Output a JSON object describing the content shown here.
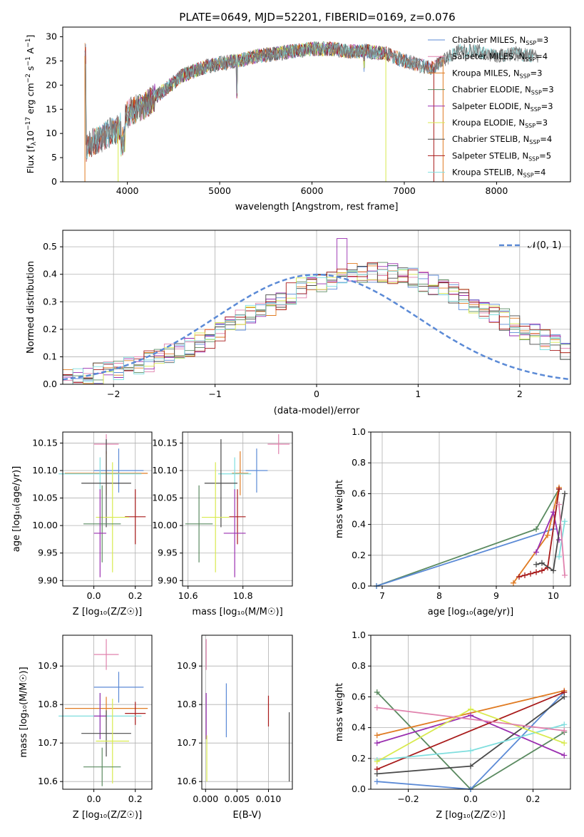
{
  "figure": {
    "title": "PLATE=0649, MJD=52201, FIBERID=0169, z=0.076"
  },
  "colors": {
    "chabrier_miles": "#5b8ad6",
    "salpeter_miles": "#e081ad",
    "kroupa_miles": "#e07b22",
    "chabrier_elodie": "#5a8a60",
    "salpeter_elodie": "#9a2fb0",
    "kroupa_elodie": "#d8ea4e",
    "chabrier_stelib": "#4a4a4a",
    "salpeter_stelib": "#a81a1a",
    "kroupa_stelib": "#7fdede",
    "data": "#808080",
    "normal": "#5b8ad6"
  },
  "spectrum": {
    "xlabel": "wavelength [Angstrom, rest frame]",
    "ylabel_main": "Flux [f",
    "ylabel_sub1": "λ",
    "ylabel_mid": "10",
    "ylabel_sup1": "−17",
    "ylabel_rest": " erg cm",
    "ylabel_sup2": "−2",
    "ylabel_s": " s",
    "ylabel_sup3": "−1",
    "ylabel_A": " A",
    "ylabel_sup4": "−1",
    "ylabel_end": "]",
    "xticks": [
      "4000",
      "5000",
      "6000",
      "7000",
      "8000"
    ],
    "yticks": [
      "0",
      "5",
      "10",
      "15",
      "20",
      "25",
      "30"
    ],
    "legend": [
      {
        "name": "Chabrier MILES",
        "n": "3",
        "key": "chabrier_miles"
      },
      {
        "name": "Salpeter MILES",
        "n": "4",
        "key": "salpeter_miles"
      },
      {
        "name": "Kroupa MILES",
        "n": "3",
        "key": "kroupa_miles"
      },
      {
        "name": "Chabrier ELODIE",
        "n": "3",
        "key": "chabrier_elodie"
      },
      {
        "name": "Salpeter ELODIE",
        "n": "3",
        "key": "salpeter_elodie"
      },
      {
        "name": "Kroupa ELODIE",
        "n": "3",
        "key": "kroupa_elodie"
      },
      {
        "name": "Chabrier STELIB",
        "n": "4",
        "key": "chabrier_stelib"
      },
      {
        "name": "Salpeter STELIB",
        "n": "5",
        "key": "salpeter_stelib"
      },
      {
        "name": "Kroupa STELIB",
        "n": "4",
        "key": "kroupa_stelib"
      }
    ],
    "legend_n_prefix": ", N",
    "legend_n_sub": "SSP",
    "legend_n_eq": "="
  },
  "residuals": {
    "xlabel": "(data-model)/error",
    "ylabel": "Normed distribution",
    "xticks": [
      "−2",
      "−1",
      "0",
      "1",
      "2"
    ],
    "yticks": [
      "0.0",
      "0.1",
      "0.2",
      "0.3",
      "0.4",
      "0.5"
    ],
    "legend_label": "𝒩(0, 1)"
  },
  "panels": {
    "age_z": {
      "xlabel": "Z [log₁₀(Z/Z☉)]",
      "ylabel": "age  [log₁₀(age/yr)]",
      "xticks": [
        "0.0",
        "0.2"
      ],
      "yticks": [
        "9.90",
        "9.95",
        "10.00",
        "10.05",
        "10.10",
        "10.15"
      ]
    },
    "age_mass": {
      "xlabel": "mass [log₁₀(M/M☉)]",
      "xticks": [
        "10.6",
        "10.8"
      ],
      "yticks": [
        "9.90",
        "9.95",
        "10.00",
        "10.05",
        "10.10",
        "10.15"
      ]
    },
    "mw_age": {
      "xlabel": "age  [log₁₀(age/yr)]",
      "ylabel": "mass weight",
      "xticks": [
        "7",
        "8",
        "9",
        "10"
      ],
      "yticks": [
        "0.0",
        "0.2",
        "0.4",
        "0.6",
        "0.8",
        "1.0"
      ]
    },
    "mass_z": {
      "xlabel": "Z [log₁₀(Z/Z☉)]",
      "ylabel": "mass [log₁₀(M/M☉)]",
      "xticks": [
        "0.0",
        "0.2"
      ],
      "yticks": [
        "10.6",
        "10.7",
        "10.8",
        "10.9"
      ]
    },
    "mass_ebv": {
      "xlabel": "E(B-V)",
      "xticks": [
        "0.000",
        "0.005",
        "0.010"
      ],
      "yticks": [
        "10.6",
        "10.7",
        "10.8",
        "10.9"
      ]
    },
    "mw_z": {
      "xlabel": "Z [log₁₀(Z/Z☉)]",
      "ylabel": "mass weight",
      "xticks": [
        "−0.2",
        "0.0",
        "0.2"
      ],
      "yticks": [
        "0.0",
        "0.2",
        "0.4",
        "0.6",
        "0.8",
        "1.0"
      ]
    }
  },
  "chart_data": [
    {
      "type": "line",
      "title": "PLATE=0649, MJD=52201, FIBERID=0169, z=0.076",
      "xlabel": "wavelength [Angstrom, rest frame]",
      "ylabel": "Flux [f_λ 10^-17 erg cm^-2 s^-1 A^-1]",
      "xlim": [
        3300,
        8800
      ],
      "ylim": [
        0,
        32
      ],
      "series_names": [
        "Chabrier MILES, N_SSP=3",
        "Salpeter MILES, N_SSP=4",
        "Kroupa MILES, N_SSP=3",
        "Chabrier ELODIE, N_SSP=3",
        "Salpeter ELODIE, N_SSP=3",
        "Kroupa ELODIE, N_SSP=3",
        "Chabrier STELIB, N_SSP=4",
        "Salpeter STELIB, N_SSP=5",
        "Kroupa STELIB, N_SSP=4"
      ],
      "continuum": {
        "x": [
          3550,
          3700,
          3900,
          4000,
          4200,
          4400,
          4600,
          4800,
          5000,
          5200,
          5400,
          5600,
          5800,
          6000,
          6200,
          6400,
          6600,
          6800,
          7000,
          7200,
          7300,
          7400,
          7600,
          7800,
          8000,
          8200,
          8400
        ],
        "y": [
          7,
          9,
          11,
          14,
          16,
          19,
          22,
          23.5,
          24.5,
          25,
          26,
          26.5,
          27,
          27.5,
          27.5,
          27,
          27,
          26.5,
          25,
          24,
          23.5,
          25,
          27,
          27,
          26,
          26.5,
          26
        ]
      }
    },
    {
      "type": "histogram",
      "xlabel": "(data-model)/error",
      "ylabel": "Normed distribution",
      "xlim": [
        -2.5,
        2.5
      ],
      "ylim": [
        0,
        0.56
      ],
      "bin_width": 0.1,
      "bins_left": -2.5,
      "density": [
        0.02,
        0.025,
        0.03,
        0.04,
        0.045,
        0.05,
        0.06,
        0.07,
        0.085,
        0.1,
        0.11,
        0.125,
        0.14,
        0.155,
        0.17,
        0.19,
        0.21,
        0.23,
        0.25,
        0.27,
        0.29,
        0.31,
        0.33,
        0.35,
        0.36,
        0.375,
        0.385,
        0.395,
        0.4,
        0.41,
        0.41,
        0.405,
        0.4,
        0.39,
        0.385,
        0.375,
        0.36,
        0.34,
        0.33,
        0.31,
        0.29,
        0.27,
        0.255,
        0.235,
        0.215,
        0.195,
        0.18,
        0.16,
        0.14,
        0.125
      ],
      "reference": "N(0,1)"
    },
    {
      "type": "scatter",
      "xlabel": "Z",
      "ylabel": "age",
      "points": [
        {
          "key": "salpeter_miles",
          "x": 0.06,
          "y": 10.148,
          "xerr": 0.06,
          "yerr": 0.018
        },
        {
          "key": "chabrier_miles",
          "x": 0.12,
          "y": 10.1,
          "xerr": 0.12,
          "yerr": 0.04
        },
        {
          "key": "kroupa_miles",
          "x": 0.06,
          "y": 10.095,
          "xerr": 0.2,
          "yerr": 0.04
        },
        {
          "key": "kroupa_stelib",
          "x": 0.03,
          "y": 10.094,
          "xerr": 0.2,
          "yerr": 0.03
        },
        {
          "key": "chabrier_stelib",
          "x": 0.06,
          "y": 10.077,
          "xerr": 0.12,
          "yerr": 0.08
        },
        {
          "key": "salpeter_stelib",
          "x": 0.2,
          "y": 10.016,
          "xerr": 0.05,
          "yerr": 0.05
        },
        {
          "key": "kroupa_elodie",
          "x": 0.09,
          "y": 10.015,
          "xerr": 0.08,
          "yerr": 0.1
        },
        {
          "key": "chabrier_elodie",
          "x": 0.04,
          "y": 10.003,
          "xerr": 0.09,
          "yerr": 0.07
        },
        {
          "key": "salpeter_elodie",
          "x": 0.03,
          "y": 9.986,
          "xerr": 0.03,
          "yerr": 0.08
        }
      ]
    },
    {
      "type": "scatter",
      "xlabel": "mass",
      "ylabel": "age",
      "points": [
        {
          "key": "salpeter_miles",
          "x": 10.93,
          "y": 10.148,
          "xerr": 0.04,
          "yerr": 0.018
        },
        {
          "key": "chabrier_miles",
          "x": 10.85,
          "y": 10.1,
          "xerr": 0.04,
          "yerr": 0.04
        },
        {
          "key": "kroupa_miles",
          "x": 10.79,
          "y": 10.095,
          "xerr": 0.03,
          "yerr": 0.04
        },
        {
          "key": "kroupa_stelib",
          "x": 10.77,
          "y": 10.094,
          "xerr": 0.06,
          "yerr": 0.03
        },
        {
          "key": "chabrier_stelib",
          "x": 10.72,
          "y": 10.077,
          "xerr": 0.06,
          "yerr": 0.08
        },
        {
          "key": "salpeter_stelib",
          "x": 10.78,
          "y": 10.016,
          "xerr": 0.03,
          "yerr": 0.05
        },
        {
          "key": "kroupa_elodie",
          "x": 10.7,
          "y": 10.015,
          "xerr": 0.05,
          "yerr": 0.1
        },
        {
          "key": "chabrier_elodie",
          "x": 10.64,
          "y": 10.003,
          "xerr": 0.05,
          "yerr": 0.07
        },
        {
          "key": "salpeter_elodie",
          "x": 10.77,
          "y": 9.986,
          "xerr": 0.04,
          "yerr": 0.08
        }
      ]
    },
    {
      "type": "line",
      "xlabel": "age",
      "ylabel": "mass weight",
      "xlim": [
        6.8,
        10.3
      ],
      "ylim": [
        0,
        1
      ],
      "series": [
        {
          "key": "chabrier_elodie",
          "x": [
            6.9,
            9.7,
            10.1
          ],
          "y": [
            0.0,
            0.37,
            0.63
          ]
        },
        {
          "key": "chabrier_miles",
          "x": [
            6.9,
            10.0,
            10.1
          ],
          "y": [
            0.0,
            0.37,
            0.63
          ]
        },
        {
          "key": "kroupa_miles",
          "x": [
            9.3,
            9.9,
            10.1
          ],
          "y": [
            0.02,
            0.33,
            0.64
          ]
        },
        {
          "key": "salpeter_elodie",
          "x": [
            9.7,
            10.0,
            10.1
          ],
          "y": [
            0.22,
            0.48,
            0.3
          ]
        },
        {
          "key": "salpeter_stelib",
          "x": [
            9.4,
            9.5,
            9.6,
            9.7,
            9.8,
            9.9,
            10.1
          ],
          "y": [
            0.06,
            0.07,
            0.08,
            0.09,
            0.1,
            0.12,
            0.63
          ]
        },
        {
          "key": "chabrier_stelib",
          "x": [
            9.7,
            9.8,
            10.0,
            10.2
          ],
          "y": [
            0.14,
            0.15,
            0.1,
            0.6
          ]
        },
        {
          "key": "kroupa_stelib",
          "x": [
            10.1,
            10.2
          ],
          "y": [
            0.19,
            0.42
          ]
        },
        {
          "key": "salpeter_miles",
          "x": [
            10.1,
            10.2
          ],
          "y": [
            0.53,
            0.07
          ]
        }
      ]
    },
    {
      "type": "scatter",
      "xlabel": "Z",
      "ylabel": "mass",
      "points": [
        {
          "key": "salpeter_miles",
          "x": 0.06,
          "y": 10.93,
          "xerr": 0.06,
          "yerr": 0.04
        },
        {
          "key": "chabrier_miles",
          "x": 0.12,
          "y": 10.845,
          "xerr": 0.12,
          "yerr": 0.04
        },
        {
          "key": "kroupa_miles",
          "x": 0.06,
          "y": 10.79,
          "xerr": 0.2,
          "yerr": 0.03
        },
        {
          "key": "salpeter_stelib",
          "x": 0.2,
          "y": 10.777,
          "xerr": 0.05,
          "yerr": 0.03
        },
        {
          "key": "kroupa_stelib",
          "x": 0.03,
          "y": 10.77,
          "xerr": 0.2,
          "yerr": 0.06
        },
        {
          "key": "salpeter_elodie",
          "x": 0.03,
          "y": 10.77,
          "xerr": 0.03,
          "yerr": 0.06
        },
        {
          "key": "chabrier_stelib",
          "x": 0.06,
          "y": 10.725,
          "xerr": 0.12,
          "yerr": 0.06
        },
        {
          "key": "kroupa_elodie",
          "x": 0.09,
          "y": 10.705,
          "xerr": 0.08,
          "yerr": 0.11
        },
        {
          "key": "chabrier_elodie",
          "x": 0.04,
          "y": 10.638,
          "xerr": 0.09,
          "yerr": 0.05
        }
      ]
    },
    {
      "type": "scatter",
      "xlabel": "E(B-V)",
      "ylabel": "mass",
      "points": [
        {
          "key": "salpeter_miles",
          "x": 0.0001,
          "y": 10.93,
          "xerr": 0,
          "yerr": 0.04
        },
        {
          "key": "chabrier_miles",
          "x": 0.0033,
          "y": 10.785,
          "xerr": 0,
          "yerr": 0.07
        },
        {
          "key": "salpeter_elodie",
          "x": 0.0001,
          "y": 10.77,
          "xerr": 0,
          "yerr": 0.06
        },
        {
          "key": "salpeter_stelib",
          "x": 0.01,
          "y": 10.783,
          "xerr": 0,
          "yerr": 0.04
        },
        {
          "key": "chabrier_stelib",
          "x": 0.0133,
          "y": 10.69,
          "xerr": 0,
          "yerr": 0.09
        },
        {
          "key": "kroupa_elodie",
          "x": 0.0002,
          "y": 10.66,
          "xerr": 0,
          "yerr": 0.06
        }
      ]
    },
    {
      "type": "line",
      "xlabel": "Z",
      "ylabel": "mass weight",
      "xlim": [
        -0.32,
        0.32
      ],
      "ylim": [
        0,
        1
      ],
      "series": [
        {
          "key": "chabrier_elodie",
          "x": [
            -0.3,
            0.0,
            0.3
          ],
          "y": [
            0.63,
            0.0,
            0.37
          ]
        },
        {
          "key": "chabrier_miles",
          "x": [
            -0.3,
            0.0,
            0.3
          ],
          "y": [
            0.05,
            0.0,
            0.63
          ]
        },
        {
          "key": "kroupa_miles",
          "x": [
            -0.3,
            0.3
          ],
          "y": [
            0.35,
            0.64
          ]
        },
        {
          "key": "salpeter_elodie",
          "x": [
            -0.3,
            0.0,
            0.3
          ],
          "y": [
            0.3,
            0.48,
            0.22
          ]
        },
        {
          "key": "salpeter_stelib",
          "x": [
            -0.3,
            0.3
          ],
          "y": [
            0.13,
            0.63
          ]
        },
        {
          "key": "chabrier_stelib",
          "x": [
            -0.3,
            0.0,
            0.3
          ],
          "y": [
            0.1,
            0.15,
            0.6
          ]
        },
        {
          "key": "kroupa_stelib",
          "x": [
            -0.3,
            0.0,
            0.3
          ],
          "y": [
            0.19,
            0.25,
            0.42
          ]
        },
        {
          "key": "kroupa_elodie",
          "x": [
            -0.3,
            0.0,
            0.3
          ],
          "y": [
            0.18,
            0.52,
            0.3
          ]
        },
        {
          "key": "salpeter_miles",
          "x": [
            -0.3,
            0.3
          ],
          "y": [
            0.53,
            0.38
          ]
        }
      ]
    }
  ]
}
